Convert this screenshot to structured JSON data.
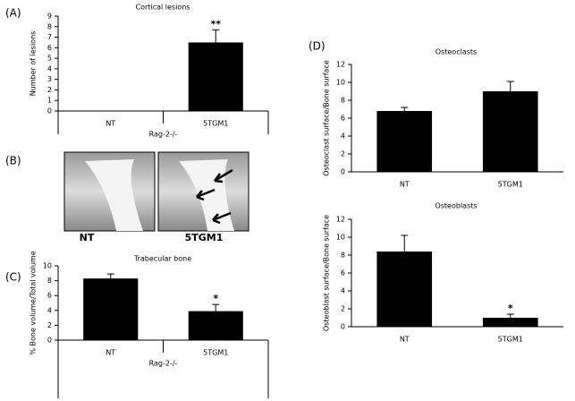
{
  "chart_data": [
    {
      "type": "bar",
      "panel": "(A)",
      "title": "Cortical lesions",
      "ylabel": "Number of lesions",
      "xlabel": "Rag-2-/-",
      "categories": [
        "NT",
        "5TGM1"
      ],
      "values": [
        0,
        6.5
      ],
      "errors": [
        0,
        1.2
      ],
      "significance": [
        null,
        "**"
      ],
      "color": "#000000",
      "ylim": [
        0,
        9
      ],
      "yticks": [
        0,
        1,
        2,
        3,
        4,
        5,
        6,
        7,
        8,
        9
      ]
    },
    {
      "type": "bar",
      "panel": "(C)",
      "title": "Trabecular bone",
      "ylabel": "% Bone volume/Total volume",
      "xlabel": "Rag-2-/-",
      "categories": [
        "NT",
        "5TGM1"
      ],
      "values": [
        8.3,
        3.9
      ],
      "errors": [
        0.6,
        0.9
      ],
      "significance": [
        null,
        "*"
      ],
      "color": "#000000",
      "ylim": [
        0,
        10
      ],
      "yticks": [
        0,
        2,
        4,
        6,
        8,
        10
      ]
    },
    {
      "type": "bar",
      "panel": "(D)",
      "title": "Osteoclasts",
      "ylabel": "Osteoclast surface/Bone surface",
      "categories": [
        "NT",
        "5TGM1"
      ],
      "values": [
        6.8,
        9.0
      ],
      "errors": [
        0.4,
        1.1
      ],
      "color": "#000000",
      "ylim": [
        0,
        12
      ],
      "yticks": [
        0,
        2,
        4,
        6,
        8,
        10,
        12
      ]
    },
    {
      "type": "bar",
      "title": "Osteoblasts",
      "ylabel": "Osteoblast surface/Bone surface",
      "categories": [
        "NT",
        "5TGM1"
      ],
      "values": [
        8.4,
        1.0
      ],
      "errors": [
        1.8,
        0.4
      ],
      "significance": [
        null,
        "*"
      ],
      "color": "#000000",
      "ylim": [
        0,
        12
      ],
      "yticks": [
        0,
        2,
        4,
        6,
        8,
        10,
        12
      ]
    }
  ],
  "images": {
    "panel": "(B)",
    "labels": [
      "NT",
      "5TGM1"
    ]
  }
}
